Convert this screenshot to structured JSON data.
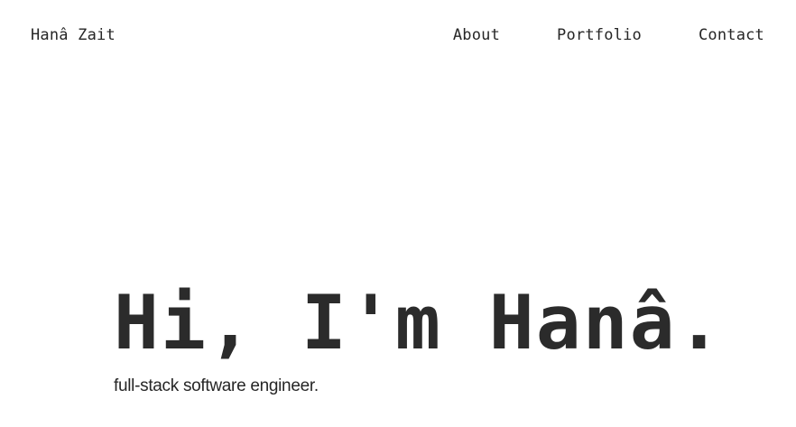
{
  "header": {
    "brand": "Hanâ Zait",
    "nav": [
      {
        "label": "About"
      },
      {
        "label": "Portfolio"
      },
      {
        "label": "Contact"
      }
    ]
  },
  "hero": {
    "title": "Hi, I'm Hanâ.",
    "subtitle": "full-stack software engineer."
  },
  "colors": {
    "background": "#ffffff",
    "text": "#262626"
  }
}
